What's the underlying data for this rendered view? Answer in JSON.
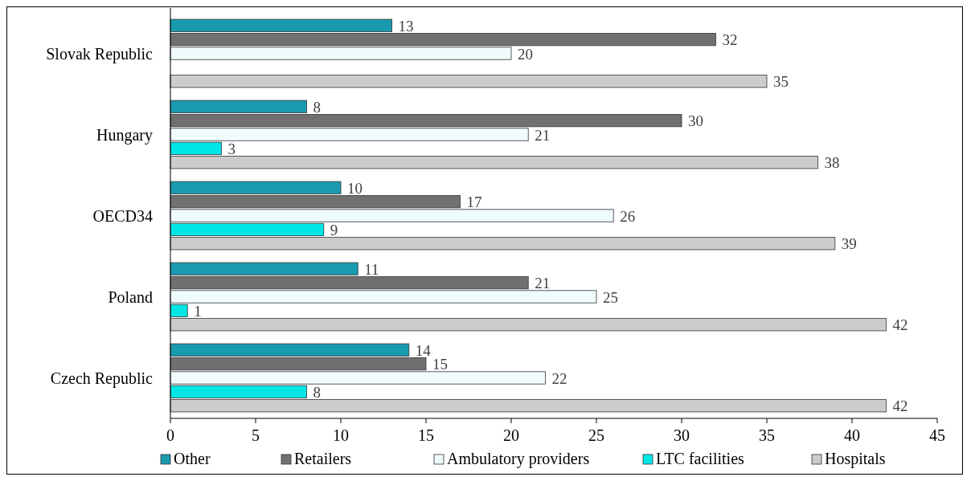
{
  "chart_data": {
    "type": "bar",
    "orientation": "horizontal",
    "categories": [
      "Slovak Republic",
      "Hungary",
      "OECD34",
      "Poland",
      "Czech Republic"
    ],
    "series": [
      {
        "name": "Other",
        "color": "#1a9aae",
        "values": [
          13,
          8,
          10,
          11,
          14
        ]
      },
      {
        "name": "Retailers",
        "color": "#707070",
        "values": [
          32,
          30,
          17,
          21,
          15
        ]
      },
      {
        "name": "Ambulatory providers",
        "color": "#f0fbfd",
        "values": [
          20,
          21,
          26,
          25,
          22
        ]
      },
      {
        "name": "LTC facilities",
        "color": "#00e6e6",
        "values": [
          null,
          3,
          9,
          1,
          8
        ]
      },
      {
        "name": "Hospitals",
        "color": "#cccccc",
        "values": [
          35,
          38,
          39,
          42,
          42
        ]
      }
    ],
    "xlim": [
      0,
      45
    ],
    "xticks": [
      0,
      5,
      10,
      15,
      20,
      25,
      30,
      35,
      40,
      45
    ],
    "grid": false,
    "legend": "bottom",
    "data_labels": true
  }
}
